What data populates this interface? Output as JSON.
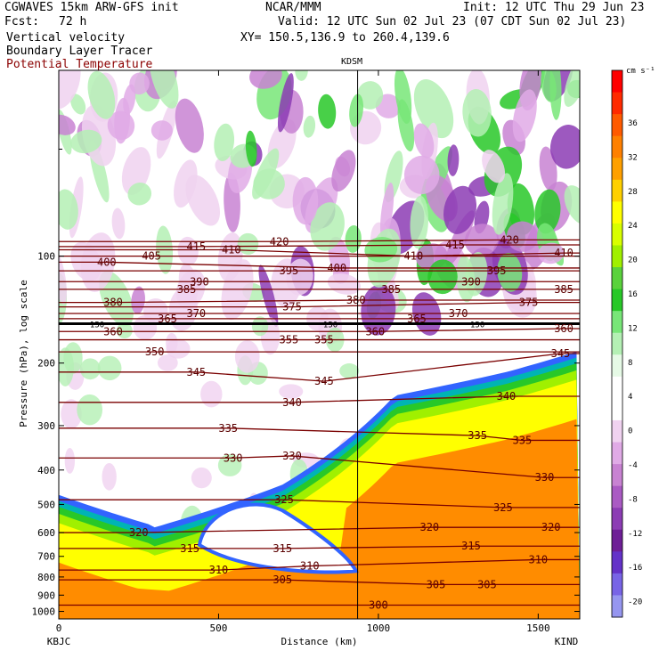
{
  "header": {
    "model": "CGWAVES 15km ARW-GFS init",
    "org": "NCAR/MMM",
    "init": "Init: 12 UTC Thu 29 Jun 23",
    "fcst_label": "Fcst:",
    "fcst_value": "72 h",
    "valid": "Valid: 12 UTC Sun 02 Jul 23 (07 CDT Sun 02 Jul 23)",
    "xy": "XY= 150.5,136.9 to 260.4,139.6",
    "fields": [
      "Vertical velocity",
      "Boundary Layer Tracer",
      "Potential Temperature"
    ],
    "field_colors": [
      "#000000",
      "#000000",
      "#8b0000"
    ],
    "marker_title": "KDSM",
    "left_station": "KBJC",
    "right_station": "KIND"
  },
  "colorbar": {
    "unit": "cm s⁻¹",
    "levels": [
      "36",
      "32",
      "28",
      "24",
      "20",
      "16",
      "12",
      "8",
      "4",
      "0",
      "-4",
      "-8",
      "-12",
      "-16",
      "-20"
    ],
    "colors": [
      "#ff0000",
      "#ff2a00",
      "#ff5a00",
      "#ff8000",
      "#ffa000",
      "#ffd000",
      "#ffff00",
      "#d8ff00",
      "#a0f000",
      "#5ad23c",
      "#28c828",
      "#78e678",
      "#b4f0b4",
      "#e6fae6",
      "#ffffff",
      "#ffffff",
      "#f0d2f0",
      "#e0aae6",
      "#c882d2",
      "#aa5ac3",
      "#8c3cb4",
      "#6e1e96",
      "#6432c8",
      "#7864e6",
      "#9696f0"
    ]
  },
  "chart_data": {
    "type": "heatmap",
    "title": "",
    "xlabel": "Distance (km)",
    "ylabel": "Pressure (hPa), log scale",
    "x_ticks": [
      0,
      500,
      1000,
      1500
    ],
    "y_ticks": [
      100,
      200,
      300,
      400,
      500,
      600,
      700,
      800,
      900,
      1000
    ],
    "y_scale": "log",
    "xlim": [
      0,
      1630
    ],
    "ylim": [
      1050,
      30
    ],
    "marker_distance_km": 935,
    "fill_fields": {
      "boundary_layer_tracer_colors": [
        "#ff8c00",
        "#ffff00",
        "#a0f000",
        "#28c828",
        "#00b4b4",
        "#3264ff"
      ],
      "vertical_velocity_shading": "green = ascent, purple = descent"
    },
    "potential_temperature_contours": [
      {
        "value": 300,
        "labels": [
          {
            "x": 1000,
            "p": 960
          }
        ]
      },
      {
        "value": 305,
        "labels": [
          {
            "x": 700,
            "p": 815
          },
          {
            "x": 1180,
            "p": 840
          },
          {
            "x": 1340,
            "p": 840
          }
        ]
      },
      {
        "value": 310,
        "labels": [
          {
            "x": 500,
            "p": 765
          },
          {
            "x": 785,
            "p": 745
          },
          {
            "x": 1500,
            "p": 715
          }
        ]
      },
      {
        "value": 315,
        "labels": [
          {
            "x": 410,
            "p": 665
          },
          {
            "x": 700,
            "p": 665
          },
          {
            "x": 1290,
            "p": 655
          }
        ]
      },
      {
        "value": 320,
        "labels": [
          {
            "x": 250,
            "p": 600
          },
          {
            "x": 1160,
            "p": 580
          },
          {
            "x": 1540,
            "p": 580
          }
        ]
      },
      {
        "value": 325,
        "labels": [
          {
            "x": 705,
            "p": 485
          },
          {
            "x": 1390,
            "p": 510
          }
        ]
      },
      {
        "value": 330,
        "labels": [
          {
            "x": 545,
            "p": 370
          },
          {
            "x": 730,
            "p": 365
          },
          {
            "x": 1520,
            "p": 420
          }
        ]
      },
      {
        "value": 335,
        "labels": [
          {
            "x": 530,
            "p": 305
          },
          {
            "x": 1310,
            "p": 320
          },
          {
            "x": 1450,
            "p": 330
          }
        ]
      },
      {
        "value": 340,
        "labels": [
          {
            "x": 730,
            "p": 258
          },
          {
            "x": 1400,
            "p": 248
          }
        ]
      },
      {
        "value": 345,
        "labels": [
          {
            "x": 430,
            "p": 212
          },
          {
            "x": 830,
            "p": 225
          },
          {
            "x": 1570,
            "p": 188
          }
        ]
      },
      {
        "value": 350,
        "labels": [
          {
            "x": 300,
            "p": 186
          }
        ]
      },
      {
        "value": 355,
        "labels": [
          {
            "x": 720,
            "p": 172
          },
          {
            "x": 830,
            "p": 172
          }
        ]
      },
      {
        "value": 360,
        "labels": [
          {
            "x": 170,
            "p": 163
          },
          {
            "x": 990,
            "p": 163
          },
          {
            "x": 1580,
            "p": 160
          }
        ]
      },
      {
        "value": 365,
        "labels": [
          {
            "x": 340,
            "p": 150
          },
          {
            "x": 1120,
            "p": 150
          }
        ]
      },
      {
        "value": 370,
        "labels": [
          {
            "x": 430,
            "p": 145
          },
          {
            "x": 1250,
            "p": 145
          }
        ]
      },
      {
        "value": 375,
        "labels": [
          {
            "x": 730,
            "p": 139
          },
          {
            "x": 1470,
            "p": 135
          }
        ]
      },
      {
        "value": 380,
        "labels": [
          {
            "x": 170,
            "p": 135
          },
          {
            "x": 930,
            "p": 133
          }
        ]
      },
      {
        "value": 385,
        "labels": [
          {
            "x": 400,
            "p": 124
          },
          {
            "x": 1040,
            "p": 124
          },
          {
            "x": 1580,
            "p": 124
          }
        ]
      },
      {
        "value": 390,
        "labels": [
          {
            "x": 440,
            "p": 118
          },
          {
            "x": 1290,
            "p": 118
          }
        ]
      },
      {
        "value": 395,
        "labels": [
          {
            "x": 720,
            "p": 110
          },
          {
            "x": 1370,
            "p": 110
          }
        ]
      },
      {
        "value": 400,
        "labels": [
          {
            "x": 150,
            "p": 104
          },
          {
            "x": 870,
            "p": 108
          }
        ]
      },
      {
        "value": 405,
        "labels": [
          {
            "x": 290,
            "p": 100
          }
        ]
      },
      {
        "value": 410,
        "labels": [
          {
            "x": 540,
            "p": 96
          },
          {
            "x": 1110,
            "p": 100
          },
          {
            "x": 1580,
            "p": 98
          }
        ]
      },
      {
        "value": 415,
        "labels": [
          {
            "x": 430,
            "p": 94
          },
          {
            "x": 1240,
            "p": 93
          }
        ]
      },
      {
        "value": 420,
        "labels": [
          {
            "x": 690,
            "p": 91
          },
          {
            "x": 1410,
            "p": 90
          }
        ]
      }
    ],
    "tropopause_marker": {
      "p": 155,
      "labels": [
        {
          "x": 120,
          "text": "150"
        },
        {
          "x": 850,
          "text": "150"
        },
        {
          "x": 1310,
          "text": "150"
        }
      ]
    }
  }
}
